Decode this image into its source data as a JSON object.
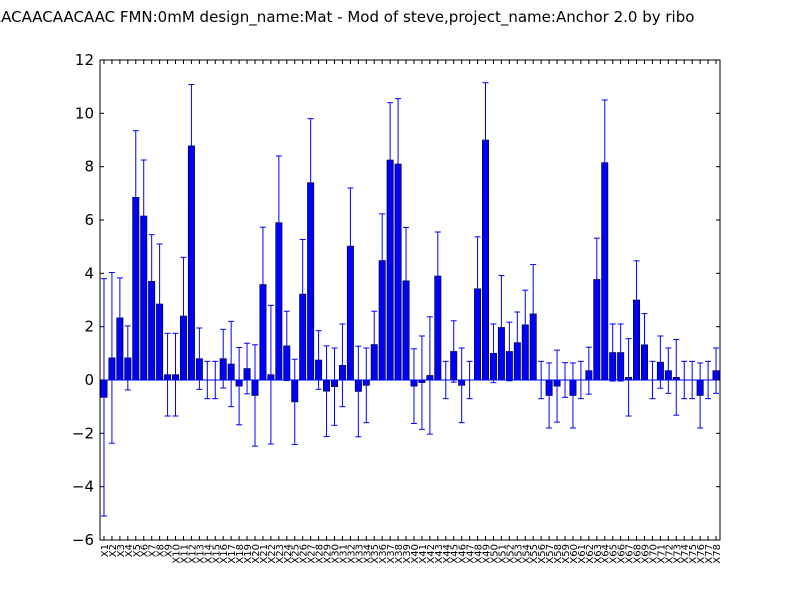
{
  "title": "ACAACAACAACAAC  FMN:0mM  design_name:Mat - Mod of steve,project_name:Anchor 2.0 by ribo",
  "chart_data": {
    "type": "bar",
    "title": "ACAACAACAACAAC  FMN:0mM  design_name:Mat - Mod of steve,project_name:Anchor 2.0 by ribo",
    "xlabel": "",
    "ylabel": "",
    "ylim": [
      -6,
      12
    ],
    "yticks": [
      -6,
      -4,
      -2,
      0,
      2,
      4,
      6,
      8,
      10,
      12
    ],
    "grid": false,
    "legend": "none",
    "bar_color": "#0000ff",
    "error_color": "#0000ff",
    "categories": [
      "X1",
      "X2",
      "X3",
      "X4",
      "X5",
      "X6",
      "X7",
      "X8",
      "X9",
      "X10",
      "X11",
      "X12",
      "X13",
      "X14",
      "X15",
      "X16",
      "X17",
      "X18",
      "X19",
      "X20",
      "X21",
      "X22",
      "X23",
      "X24",
      "X25",
      "X26",
      "X27",
      "X28",
      "X29",
      "X30",
      "X31",
      "X32",
      "X33",
      "X34",
      "X35",
      "X36",
      "X37",
      "X38",
      "X39",
      "X40",
      "X41",
      "X42",
      "X43",
      "X44",
      "X45",
      "X46",
      "X47",
      "X48",
      "X49",
      "X50",
      "X51",
      "X52",
      "X53",
      "X54",
      "X55",
      "X56",
      "X57",
      "X58",
      "X59",
      "X60",
      "X61",
      "X62",
      "X63",
      "X64",
      "X65",
      "X66",
      "X67",
      "X68",
      "X69",
      "X70",
      "X71",
      "X72",
      "X73",
      "X74",
      "X75",
      "X76",
      "X77",
      "X78"
    ],
    "values": [
      -0.65,
      0.83,
      2.33,
      0.83,
      6.85,
      6.15,
      3.7,
      2.85,
      0.2,
      0.2,
      2.4,
      8.78,
      0.8,
      0,
      0,
      0.8,
      0.6,
      -0.23,
      0.43,
      -0.58,
      3.58,
      0.2,
      5.9,
      1.28,
      -0.82,
      3.22,
      7.4,
      0.75,
      -0.42,
      -0.25,
      0.55,
      5.02,
      -0.43,
      -0.2,
      1.33,
      4.48,
      8.25,
      8.1,
      3.72,
      -0.23,
      -0.1,
      0.17,
      3.9,
      0,
      1.07,
      -0.2,
      0,
      3.42,
      9,
      1,
      1.97,
      1.07,
      1.4,
      2.07,
      2.48,
      0,
      -0.58,
      -0.23,
      0,
      -0.58,
      0,
      0.35,
      3.77,
      8.15,
      1.03,
      1.03,
      0.1,
      3,
      1.32,
      0,
      0.67,
      0.35,
      0.1,
      0,
      0,
      -0.58,
      0,
      0.35
    ],
    "errors": [
      4.45,
      3.2,
      1.5,
      1.2,
      2.5,
      2.1,
      1.75,
      2.25,
      1.55,
      1.55,
      2.2,
      2.3,
      1.15,
      0.7,
      0.7,
      1.1,
      1.6,
      1.45,
      0.95,
      1.9,
      2.15,
      2.6,
      2.5,
      1.3,
      1.6,
      2.05,
      2.4,
      1.1,
      1.7,
      1.45,
      1.55,
      2.18,
      1.7,
      1.4,
      1.25,
      1.75,
      2.15,
      2.45,
      2,
      1.4,
      1.75,
      2.2,
      1.65,
      0.7,
      1.15,
      1.4,
      0.7,
      1.95,
      2.15,
      1.1,
      1.95,
      1.1,
      1.15,
      1.3,
      1.85,
      0.7,
      1.22,
      1.35,
      0.65,
      1.22,
      0.7,
      0.88,
      1.55,
      2.35,
      1.07,
      1.07,
      1.45,
      1.47,
      1.17,
      0.7,
      0.98,
      0.85,
      1.42,
      0.7,
      0.7,
      1.22,
      0.7,
      0.85
    ]
  }
}
